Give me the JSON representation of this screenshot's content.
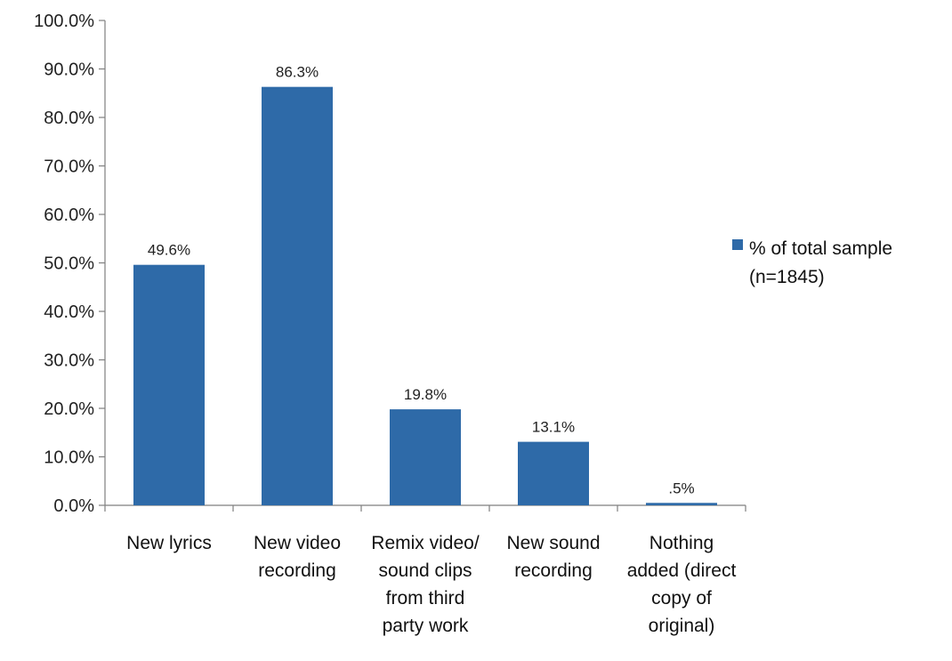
{
  "chart_data": {
    "type": "bar",
    "categories": [
      [
        "New lyrics"
      ],
      [
        "New video",
        "recording"
      ],
      [
        "Remix video/",
        "sound clips",
        "from  third",
        "party work"
      ],
      [
        "New sound",
        "recording"
      ],
      [
        "Nothing",
        "added (direct",
        "copy of",
        "original)"
      ]
    ],
    "series": [
      {
        "name": [
          "% of total sample",
          "(n=1845)"
        ],
        "values": [
          49.6,
          86.3,
          19.8,
          13.1,
          0.5
        ],
        "data_labels": [
          "49.6%",
          "86.3%",
          "19.8%",
          "13.1%",
          ".5%"
        ],
        "color": "#2e6aa8"
      }
    ],
    "ylim": [
      0,
      100
    ],
    "y_ticks": [
      "0.0%",
      "10.0%",
      "20.0%",
      "30.0%",
      "40.0%",
      "50.0%",
      "60.0%",
      "70.0%",
      "80.0%",
      "90.0%",
      "100.0%"
    ],
    "grid": false,
    "legend_position": "right",
    "axis_color": "#7f7f7f"
  }
}
